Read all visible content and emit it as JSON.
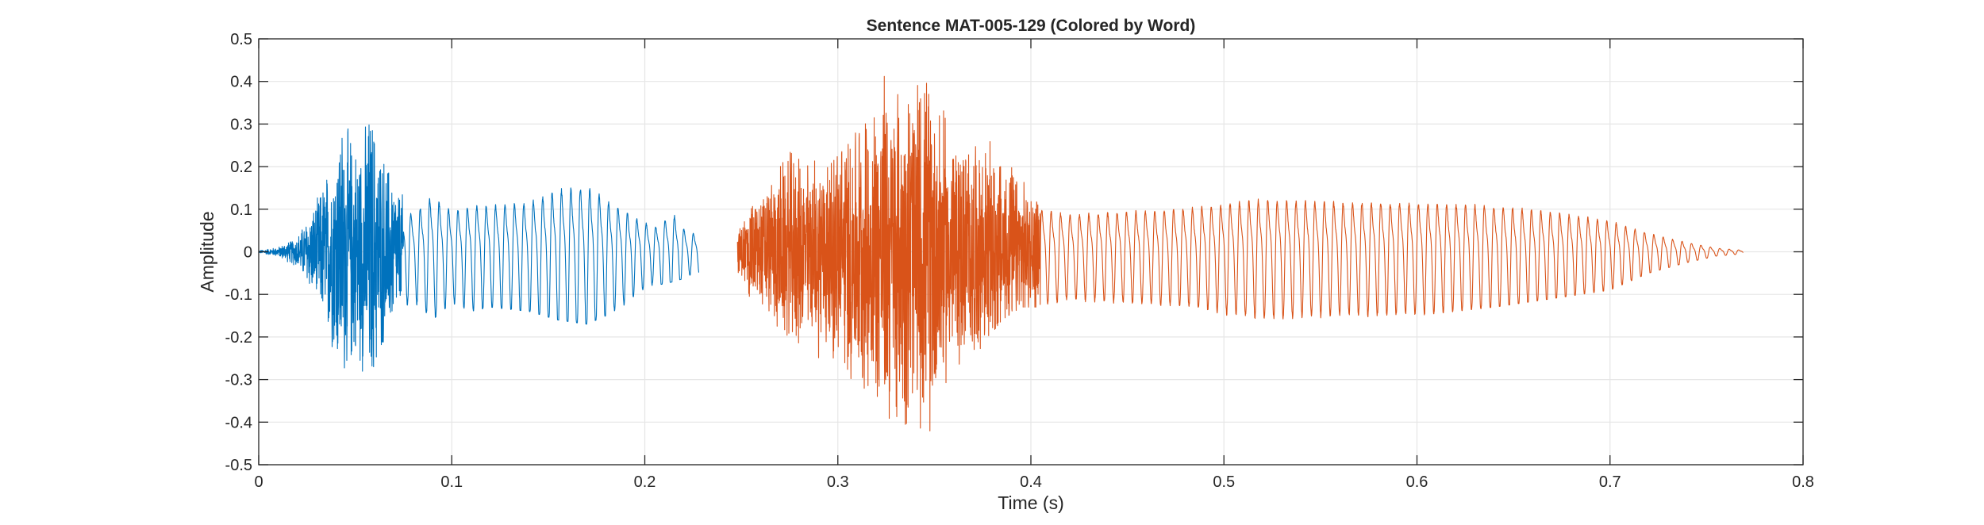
{
  "chart_data": {
    "type": "line",
    "title": "Sentence MAT-005-129 (Colored by Word)",
    "xlabel": "Time (s)",
    "ylabel": "Amplitude",
    "xlim": [
      0,
      0.8
    ],
    "ylim": [
      -0.5,
      0.5
    ],
    "xticks": [
      0,
      0.1,
      0.2,
      0.3,
      0.4,
      0.5,
      0.6,
      0.7,
      0.8
    ],
    "xtick_labels": [
      "0",
      "0.1",
      "0.2",
      "0.3",
      "0.4",
      "0.5",
      "0.6",
      "0.7",
      "0.8"
    ],
    "yticks": [
      -0.5,
      -0.4,
      -0.3,
      -0.2,
      -0.1,
      0,
      0.1,
      0.2,
      0.3,
      0.4,
      0.5
    ],
    "ytick_labels": [
      "-0.5",
      "-0.4",
      "-0.3",
      "-0.2",
      "-0.1",
      "0",
      "0.1",
      "0.2",
      "0.3",
      "0.4",
      "0.5"
    ],
    "grid": true,
    "series": [
      {
        "color": "#0072BD",
        "x_range": [
          0,
          0.228
        ],
        "envelope": [
          [
            0.0,
            0.003,
            -0.003
          ],
          [
            0.01,
            0.01,
            -0.012
          ],
          [
            0.02,
            0.03,
            -0.04
          ],
          [
            0.03,
            0.12,
            -0.13
          ],
          [
            0.037,
            0.23,
            -0.23
          ],
          [
            0.043,
            0.34,
            -0.28
          ],
          [
            0.05,
            0.28,
            -0.25
          ],
          [
            0.058,
            0.3,
            -0.38
          ],
          [
            0.065,
            0.25,
            -0.2
          ],
          [
            0.072,
            0.16,
            -0.16
          ],
          [
            0.08,
            0.12,
            -0.12
          ],
          [
            0.09,
            0.18,
            -0.16
          ],
          [
            0.1,
            0.13,
            -0.12
          ],
          [
            0.11,
            0.15,
            -0.14
          ],
          [
            0.12,
            0.15,
            -0.13
          ],
          [
            0.14,
            0.16,
            -0.14
          ],
          [
            0.155,
            0.2,
            -0.16
          ],
          [
            0.17,
            0.21,
            -0.17
          ],
          [
            0.18,
            0.17,
            -0.15
          ],
          [
            0.195,
            0.11,
            -0.11
          ],
          [
            0.205,
            0.08,
            -0.08
          ],
          [
            0.215,
            0.12,
            -0.07
          ],
          [
            0.222,
            0.06,
            -0.06
          ],
          [
            0.228,
            0.05,
            -0.06
          ]
        ]
      },
      {
        "color": "#D95319",
        "x_range": [
          0.248,
          0.769
        ],
        "envelope": [
          [
            0.248,
            0.05,
            -0.05
          ],
          [
            0.255,
            0.1,
            -0.13
          ],
          [
            0.265,
            0.18,
            -0.17
          ],
          [
            0.275,
            0.25,
            -0.2
          ],
          [
            0.285,
            0.23,
            -0.23
          ],
          [
            0.295,
            0.2,
            -0.28
          ],
          [
            0.305,
            0.25,
            -0.33
          ],
          [
            0.315,
            0.32,
            -0.36
          ],
          [
            0.325,
            0.46,
            -0.46
          ],
          [
            0.33,
            0.42,
            -0.42
          ],
          [
            0.34,
            0.47,
            -0.39
          ],
          [
            0.348,
            0.42,
            -0.46
          ],
          [
            0.358,
            0.3,
            -0.3
          ],
          [
            0.37,
            0.28,
            -0.25
          ],
          [
            0.385,
            0.25,
            -0.16
          ],
          [
            0.395,
            0.18,
            -0.13
          ],
          [
            0.405,
            0.14,
            -0.13
          ],
          [
            0.42,
            0.12,
            -0.12
          ],
          [
            0.45,
            0.13,
            -0.13
          ],
          [
            0.48,
            0.14,
            -0.14
          ],
          [
            0.52,
            0.15,
            -0.17
          ],
          [
            0.56,
            0.16,
            -0.16
          ],
          [
            0.6,
            0.16,
            -0.15
          ],
          [
            0.64,
            0.15,
            -0.13
          ],
          [
            0.67,
            0.13,
            -0.11
          ],
          [
            0.7,
            0.1,
            -0.09
          ],
          [
            0.72,
            0.06,
            -0.05
          ],
          [
            0.74,
            0.03,
            -0.025
          ],
          [
            0.755,
            0.012,
            -0.01
          ],
          [
            0.769,
            0.005,
            -0.005
          ]
        ]
      }
    ]
  }
}
